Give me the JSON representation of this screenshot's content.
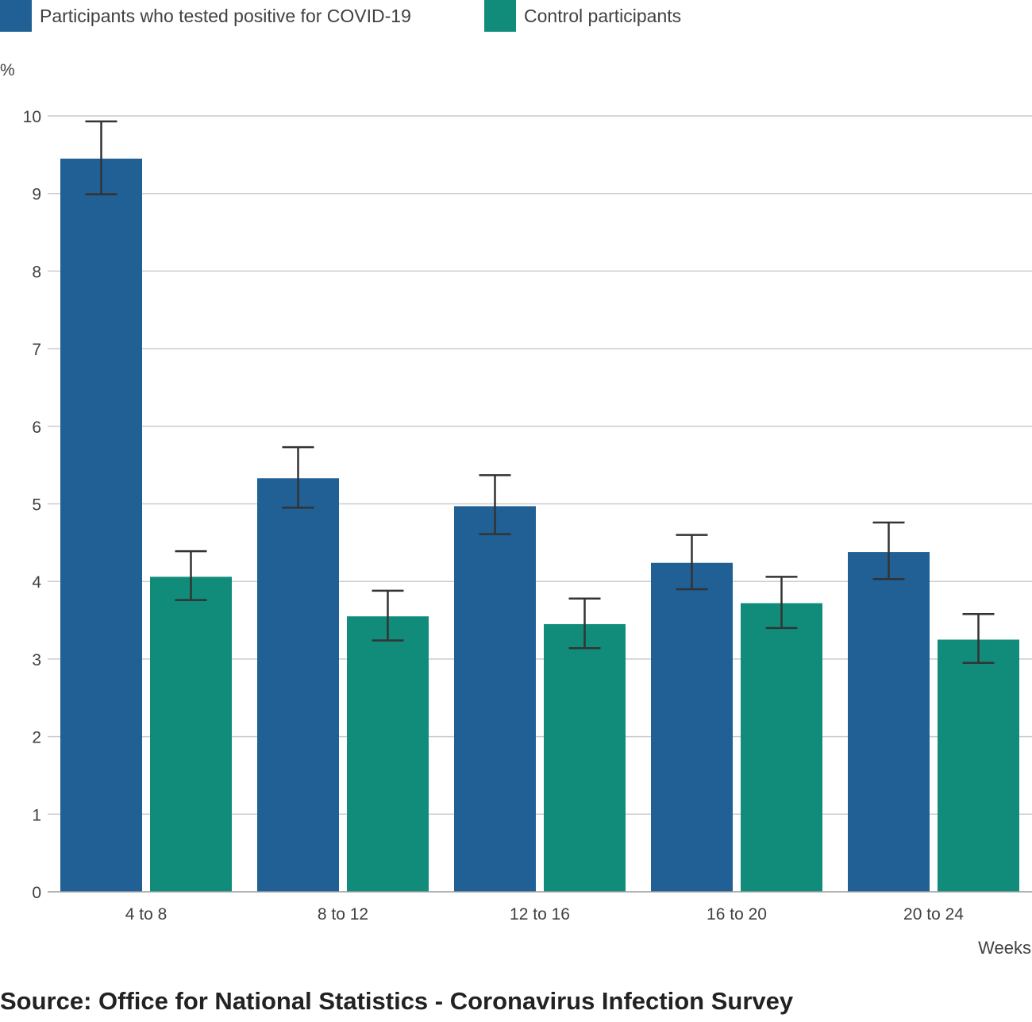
{
  "chart_data": {
    "type": "bar",
    "categories": [
      "4 to 8",
      "8 to 12",
      "12 to 16",
      "16 to 20",
      "20 to 24"
    ],
    "series": [
      {
        "name": "Participants who tested positive for COVID-19",
        "color": "#206095",
        "values": [
          9.45,
          5.33,
          4.97,
          4.24,
          4.38
        ],
        "lower": [
          8.99,
          4.95,
          4.61,
          3.9,
          4.03
        ],
        "upper": [
          9.93,
          5.73,
          5.37,
          4.6,
          4.76
        ]
      },
      {
        "name": "Control participants",
        "color": "#118c7b",
        "values": [
          4.06,
          3.55,
          3.45,
          3.72,
          3.25
        ],
        "lower": [
          3.76,
          3.24,
          3.14,
          3.4,
          2.95
        ],
        "upper": [
          4.39,
          3.88,
          3.78,
          4.06,
          3.58
        ]
      }
    ],
    "yticks": [
      "0",
      "1",
      "2",
      "3",
      "4",
      "5",
      "6",
      "7",
      "8",
      "9",
      "10"
    ],
    "ylim": [
      0,
      10
    ],
    "ylabel": "%",
    "xlabel": "Weeks",
    "grid": true,
    "legend": "top-left"
  },
  "source": "Source: Office for National Statistics - Coronavirus Infection Survey"
}
